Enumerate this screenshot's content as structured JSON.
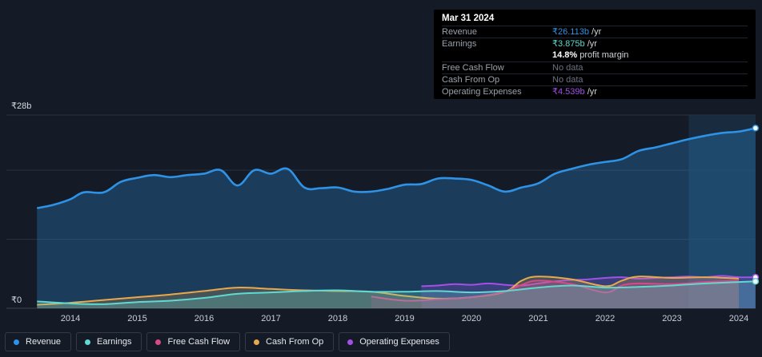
{
  "colors": {
    "revenue": "#2e93e6",
    "earnings": "#5fd9d1",
    "free_cash_flow": "#d84a86",
    "cash_from_op": "#e8a94c",
    "operating_expenses": "#a44fe8",
    "background": "#151b26"
  },
  "tooltip": {
    "date": "Mar 31 2024",
    "rows": [
      {
        "label": "Revenue",
        "value": "₹26.113b",
        "unit": " /yr",
        "color": "#2e93e6"
      },
      {
        "label": "Earnings",
        "value": "₹3.875b",
        "unit": " /yr",
        "color": "#5fd9d1"
      },
      {
        "label": "",
        "value": "14.8%",
        "unit": " profit margin",
        "color": "#ffffff"
      },
      {
        "label": "Free Cash Flow",
        "value": "No data",
        "unit": "",
        "color": "#6b7280"
      },
      {
        "label": "Cash From Op",
        "value": "No data",
        "unit": "",
        "color": "#6b7280"
      },
      {
        "label": "Operating Expenses",
        "value": "₹4.539b",
        "unit": " /yr",
        "color": "#a44fe8"
      }
    ]
  },
  "legend": [
    {
      "label": "Revenue",
      "color": "#2e93e6"
    },
    {
      "label": "Earnings",
      "color": "#5fd9d1"
    },
    {
      "label": "Free Cash Flow",
      "color": "#d84a86"
    },
    {
      "label": "Cash From Op",
      "color": "#e8a94c"
    },
    {
      "label": "Operating Expenses",
      "color": "#a44fe8"
    }
  ],
  "chart_data": {
    "type": "area",
    "y_unit_labels": {
      "top": "₹28b",
      "bottom": "₹0"
    },
    "ylim": [
      0,
      28
    ],
    "xlim": [
      2013.3,
      2024.3
    ],
    "x_ticks": [
      "2014",
      "2015",
      "2016",
      "2017",
      "2018",
      "2019",
      "2020",
      "2021",
      "2022",
      "2023",
      "2024"
    ],
    "highlight_start": 2023.25,
    "series": [
      {
        "name": "Revenue",
        "key": "revenue",
        "x": [
          2013.5,
          2013.75,
          2014.0,
          2014.2,
          2014.5,
          2014.75,
          2015.0,
          2015.25,
          2015.5,
          2015.75,
          2016.0,
          2016.25,
          2016.5,
          2016.75,
          2017.0,
          2017.25,
          2017.5,
          2017.75,
          2018.0,
          2018.25,
          2018.5,
          2018.75,
          2019.0,
          2019.25,
          2019.5,
          2019.75,
          2020.0,
          2020.25,
          2020.5,
          2020.75,
          2021.0,
          2021.25,
          2021.5,
          2021.75,
          2022.0,
          2022.25,
          2022.5,
          2022.75,
          2023.0,
          2023.25,
          2023.5,
          2023.75,
          2024.0,
          2024.25
        ],
        "values": [
          14.5,
          15.0,
          15.8,
          16.8,
          16.8,
          18.3,
          18.9,
          19.3,
          19.0,
          19.3,
          19.5,
          20.0,
          17.8,
          20.0,
          19.5,
          20.2,
          17.5,
          17.4,
          17.5,
          16.9,
          16.9,
          17.3,
          17.9,
          18.0,
          18.8,
          18.8,
          18.6,
          17.8,
          16.9,
          17.5,
          18.1,
          19.5,
          20.2,
          20.8,
          21.2,
          21.6,
          22.8,
          23.3,
          23.9,
          24.5,
          25.0,
          25.4,
          25.6,
          26.1
        ]
      },
      {
        "name": "Earnings",
        "key": "earnings",
        "x": [
          2013.5,
          2014.0,
          2014.5,
          2015.0,
          2015.5,
          2016.0,
          2016.5,
          2017.0,
          2017.5,
          2018.0,
          2018.5,
          2019.0,
          2019.5,
          2020.0,
          2020.5,
          2021.0,
          2021.5,
          2022.0,
          2022.5,
          2023.0,
          2023.5,
          2024.0,
          2024.25
        ],
        "values": [
          1.0,
          0.7,
          0.6,
          0.9,
          1.1,
          1.5,
          2.1,
          2.3,
          2.5,
          2.6,
          2.4,
          2.4,
          2.5,
          2.3,
          2.5,
          3.0,
          3.3,
          3.0,
          3.1,
          3.3,
          3.6,
          3.8,
          3.9
        ]
      },
      {
        "name": "Free Cash Flow",
        "key": "free_cash_flow",
        "x": [
          2018.5,
          2019.0,
          2019.5,
          2020.0,
          2020.5,
          2020.75,
          2021.0,
          2021.5,
          2022.0,
          2022.25,
          2022.5,
          2023.0,
          2023.5,
          2024.0
        ],
        "values": [
          1.7,
          1.1,
          1.3,
          1.6,
          2.4,
          3.4,
          4.0,
          3.5,
          2.3,
          3.3,
          3.6,
          3.5,
          3.8,
          4.0
        ]
      },
      {
        "name": "Cash From Op",
        "key": "cash_from_op",
        "x": [
          2013.5,
          2014.0,
          2014.5,
          2015.0,
          2015.5,
          2016.0,
          2016.5,
          2017.0,
          2017.5,
          2018.0,
          2018.5,
          2019.0,
          2019.5,
          2020.0,
          2020.5,
          2020.75,
          2021.0,
          2021.5,
          2022.0,
          2022.25,
          2022.5,
          2023.0,
          2023.5,
          2024.0
        ],
        "values": [
          0.5,
          0.8,
          1.2,
          1.6,
          2.0,
          2.5,
          3.0,
          2.8,
          2.6,
          2.5,
          2.4,
          1.8,
          1.4,
          1.6,
          2.4,
          4.0,
          4.6,
          4.2,
          3.2,
          4.0,
          4.6,
          4.4,
          4.5,
          4.3
        ]
      },
      {
        "name": "Operating Expenses",
        "key": "operating_expenses",
        "x": [
          2019.25,
          2019.5,
          2019.75,
          2020.0,
          2020.25,
          2020.5,
          2020.75,
          2021.0,
          2021.25,
          2021.5,
          2021.75,
          2022.0,
          2022.25,
          2022.5,
          2022.75,
          2023.0,
          2023.25,
          2023.5,
          2023.75,
          2024.0,
          2024.25
        ],
        "values": [
          3.2,
          3.3,
          3.5,
          3.4,
          3.6,
          3.4,
          3.3,
          3.6,
          3.9,
          4.1,
          4.2,
          4.4,
          4.5,
          4.3,
          4.4,
          4.5,
          4.6,
          4.5,
          4.7,
          4.5,
          4.5
        ]
      }
    ]
  }
}
